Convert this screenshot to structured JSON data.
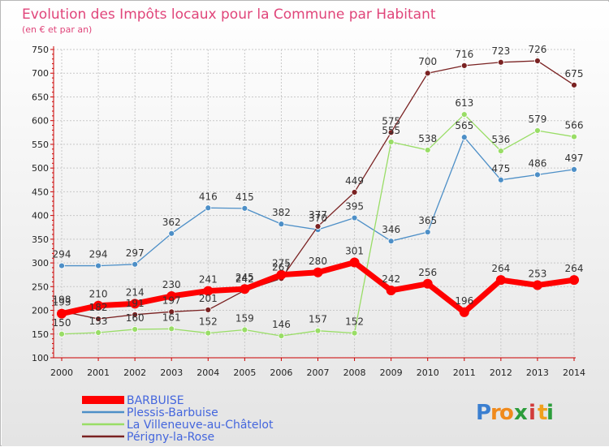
{
  "chart_data": {
    "type": "line",
    "title": "Evolution des Impôts locaux pour la Commune par Habitant",
    "subtitle": "(en € et par an)",
    "xlabel": "",
    "ylabel": "",
    "x": [
      "2000",
      "2001",
      "2002",
      "2003",
      "2004",
      "2005",
      "2006",
      "2007",
      "2008",
      "2009",
      "2010",
      "2011",
      "2012",
      "2013",
      "2014"
    ],
    "ylim": [
      100,
      750
    ],
    "yticks": [
      "100",
      "150",
      "200",
      "250",
      "300",
      "350",
      "400",
      "450",
      "500",
      "550",
      "600",
      "650",
      "700",
      "750"
    ],
    "grid": true,
    "legend": "bottom-left",
    "series": [
      {
        "name": "BARBUISE",
        "color": "#ff0000",
        "values": [
          193,
          210,
          214,
          230,
          241,
          245,
          275,
          280,
          301,
          242,
          256,
          196,
          264,
          253,
          264
        ],
        "labels": [
          "193",
          "210",
          "214",
          "230",
          "241",
          "245",
          "275",
          "280",
          "301",
          "242",
          "256",
          "196",
          "264",
          "253",
          "264"
        ]
      },
      {
        "name": "Plessis-Barbuise",
        "color": "#4d8fc7",
        "values": [
          294,
          294,
          297,
          362,
          416,
          415,
          382,
          370,
          395,
          346,
          365,
          565,
          475,
          486,
          497
        ],
        "labels": [
          "294",
          "294",
          "297",
          "362",
          "416",
          "415",
          "382",
          "370",
          "395",
          "346",
          "365",
          "565",
          "475",
          "486",
          "497"
        ]
      },
      {
        "name": "La Villeneuve-au-Châtelot",
        "color": "#99dd66",
        "values": [
          150,
          153,
          160,
          161,
          152,
          159,
          146,
          157,
          152,
          555,
          538,
          613,
          536,
          579,
          566
        ],
        "labels": [
          "150",
          "153",
          "160",
          "161",
          "152",
          "159",
          "146",
          "157",
          "152",
          "555",
          "538",
          "613",
          "536",
          "579",
          "566"
        ]
      },
      {
        "name": "Périgny-la-Rose",
        "color": "#7a2222",
        "values": [
          198,
          182,
          191,
          197,
          201,
          242,
          267,
          377,
          449,
          575,
          700,
          716,
          723,
          726,
          675
        ],
        "labels": [
          "198",
          "182",
          "191",
          "197",
          "201",
          "242",
          "267",
          "377",
          "449",
          "575",
          "700",
          "716",
          "723",
          "726",
          "675"
        ]
      }
    ]
  },
  "logo": {
    "letters": [
      "P",
      "r",
      "o",
      "x",
      "i",
      "t",
      "i"
    ],
    "colors": [
      "#3b7fd0",
      "#f08a1c",
      "#f08a1c",
      "#2c9d3b",
      "#d13b3b",
      "#f0a01c",
      "#2c9d3b"
    ]
  }
}
